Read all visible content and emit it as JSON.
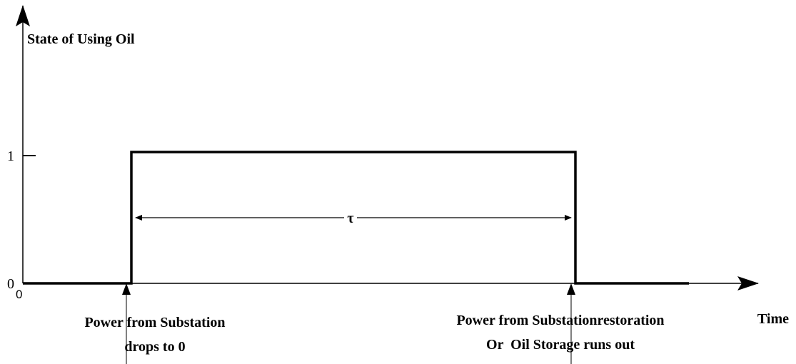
{
  "y_axis_label": "State of Using Oil",
  "y_tick_1": "1",
  "y_tick_0": "0",
  "origin": "0",
  "duration": "τ",
  "x_axis_label": "Time",
  "event_start": [
    "Power from Substation",
    "drops to 0"
  ],
  "event_end": [
    "Power from Substationrestoration",
    "Or  Oil Storage runs out"
  ]
}
